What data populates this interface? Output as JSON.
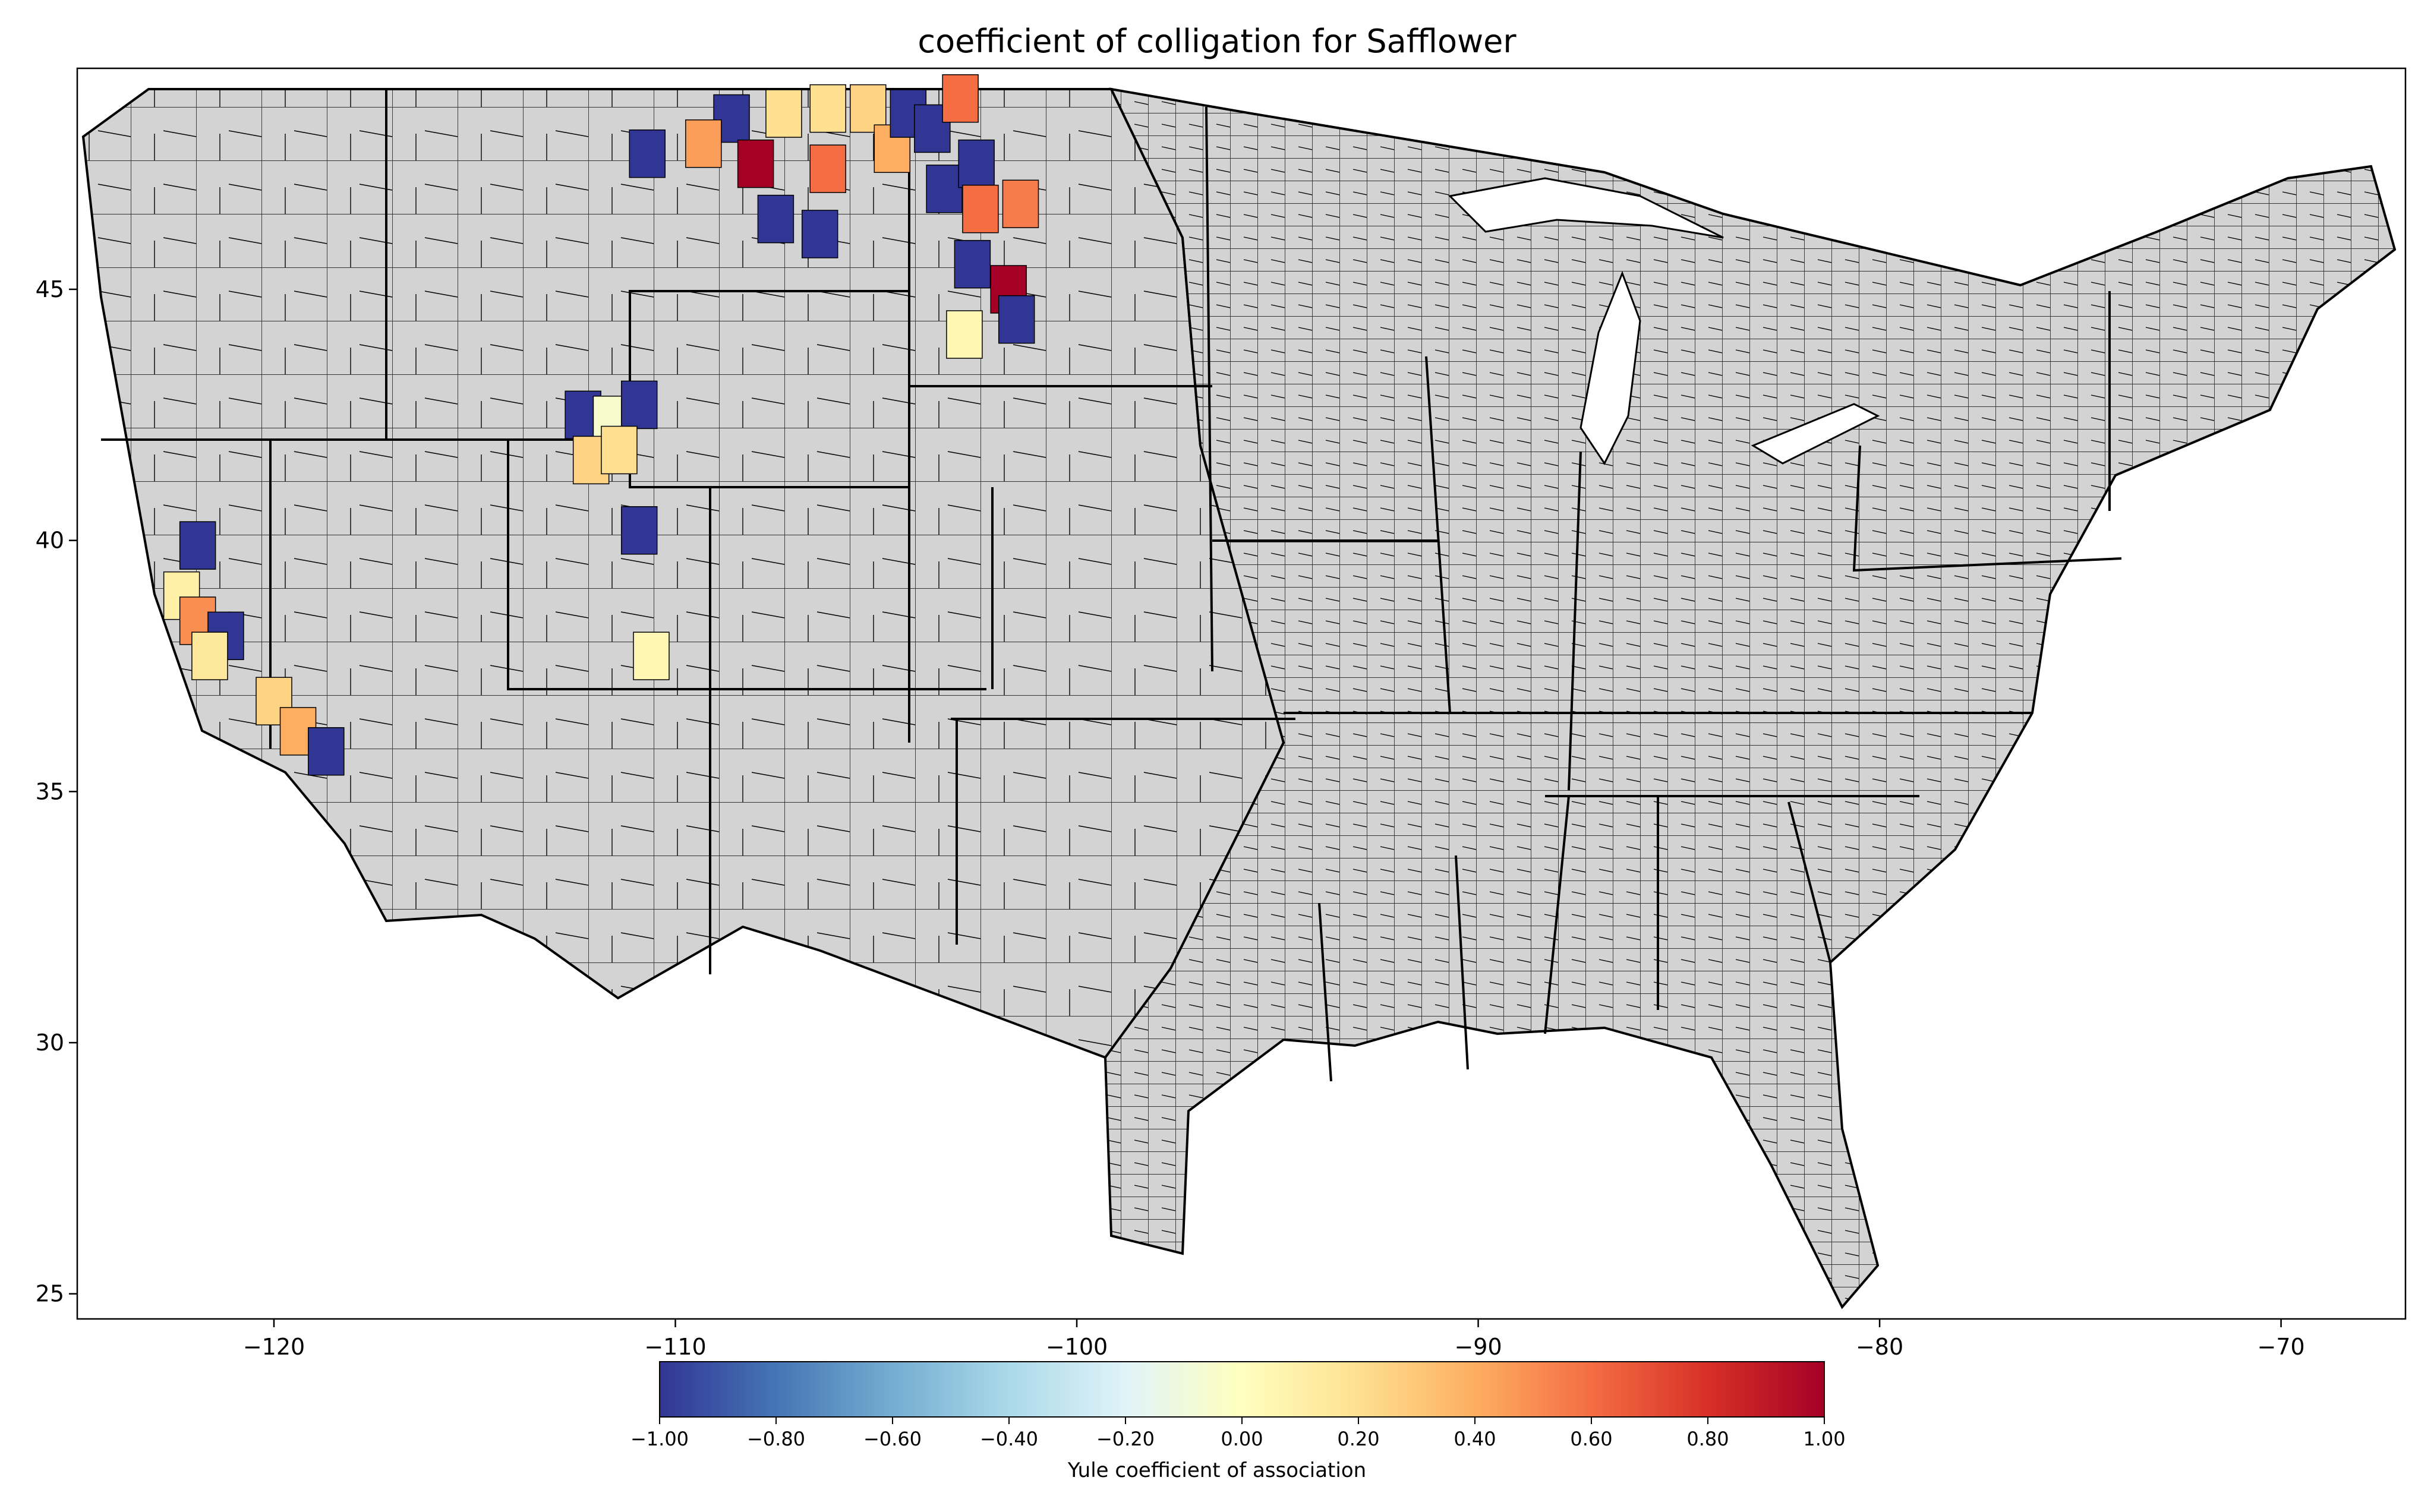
{
  "title": "coefficient of colligation for Safflower",
  "map": {
    "region": "Contiguous United States, county boundaries",
    "base_fill": "#d3d3d3",
    "border_color": "#000000",
    "x_ticks": [
      {
        "value": -120,
        "label": "−120"
      },
      {
        "value": -110,
        "label": "−110"
      },
      {
        "value": -100,
        "label": "−100"
      },
      {
        "value": -90,
        "label": "−90"
      },
      {
        "value": -80,
        "label": "−80"
      },
      {
        "value": -70,
        "label": "−70"
      }
    ],
    "y_ticks": [
      {
        "value": 45,
        "label": "45"
      },
      {
        "value": 40,
        "label": "40"
      },
      {
        "value": 35,
        "label": "35"
      },
      {
        "value": 30,
        "label": "30"
      },
      {
        "value": 25,
        "label": "25"
      }
    ],
    "xlim": [
      -124.9,
      -66.9
    ],
    "ylim": [
      24.5,
      49.4
    ],
    "highlighted_regions": [
      {
        "lon": -108.6,
        "lat": 48.4,
        "value": -1.0
      },
      {
        "lon": -107.3,
        "lat": 48.5,
        "value": 0.2
      },
      {
        "lon": -106.2,
        "lat": 48.6,
        "value": 0.2
      },
      {
        "lon": -105.2,
        "lat": 48.6,
        "value": 0.25
      },
      {
        "lon": -109.3,
        "lat": 47.9,
        "value": 0.45
      },
      {
        "lon": -108.0,
        "lat": 47.5,
        "value": 1.0
      },
      {
        "lon": -106.2,
        "lat": 47.4,
        "value": 0.6
      },
      {
        "lon": -104.6,
        "lat": 47.8,
        "value": 0.4
      },
      {
        "lon": -104.2,
        "lat": 48.5,
        "value": -1.0
      },
      {
        "lon": -110.7,
        "lat": 47.7,
        "value": -1.0
      },
      {
        "lon": -107.5,
        "lat": 46.4,
        "value": -1.0
      },
      {
        "lon": -106.4,
        "lat": 46.1,
        "value": -1.0
      },
      {
        "lon": -103.6,
        "lat": 48.2,
        "value": -1.0
      },
      {
        "lon": -102.9,
        "lat": 48.8,
        "value": 0.6
      },
      {
        "lon": -103.3,
        "lat": 47.0,
        "value": -1.0
      },
      {
        "lon": -102.5,
        "lat": 47.5,
        "value": -1.0
      },
      {
        "lon": -101.4,
        "lat": 46.7,
        "value": 0.55
      },
      {
        "lon": -102.4,
        "lat": 46.6,
        "value": 0.6
      },
      {
        "lon": -101.7,
        "lat": 45.0,
        "value": 1.0
      },
      {
        "lon": -102.6,
        "lat": 45.5,
        "value": -1.0
      },
      {
        "lon": -101.5,
        "lat": 44.4,
        "value": -1.0
      },
      {
        "lon": -102.8,
        "lat": 44.1,
        "value": 0.05
      },
      {
        "lon": -112.3,
        "lat": 42.5,
        "value": -1.0
      },
      {
        "lon": -111.6,
        "lat": 42.4,
        "value": -0.05
      },
      {
        "lon": -110.9,
        "lat": 42.7,
        "value": -1.0
      },
      {
        "lon": -112.1,
        "lat": 41.6,
        "value": 0.25
      },
      {
        "lon": -111.4,
        "lat": 41.8,
        "value": 0.2
      },
      {
        "lon": -110.9,
        "lat": 40.2,
        "value": -1.0
      },
      {
        "lon": -110.6,
        "lat": 37.7,
        "value": 0.05
      },
      {
        "lon": -121.9,
        "lat": 39.9,
        "value": -1.0
      },
      {
        "lon": -122.3,
        "lat": 38.9,
        "value": 0.1
      },
      {
        "lon": -121.9,
        "lat": 38.4,
        "value": 0.5
      },
      {
        "lon": -121.2,
        "lat": 38.1,
        "value": -1.0
      },
      {
        "lon": -121.6,
        "lat": 37.7,
        "value": 0.15
      },
      {
        "lon": -120.0,
        "lat": 36.8,
        "value": 0.25
      },
      {
        "lon": -119.4,
        "lat": 36.2,
        "value": 0.4
      },
      {
        "lon": -118.7,
        "lat": 35.8,
        "value": -1.0
      }
    ]
  },
  "colorbar": {
    "label": "Yule coefficient of association",
    "min": -1.0,
    "max": 1.0,
    "tick_labels": [
      "−1.00",
      "−0.80",
      "−0.60",
      "−0.40",
      "−0.20",
      "0.00",
      "0.20",
      "0.40",
      "0.60",
      "0.80",
      "1.00"
    ],
    "tick_values": [
      -1.0,
      -0.8,
      -0.6,
      -0.4,
      -0.2,
      0.0,
      0.2,
      0.4,
      0.6,
      0.8,
      1.0
    ],
    "colors": [
      "#313695",
      "#4575b4",
      "#74add1",
      "#abd9e9",
      "#e0f3f8",
      "#ffffbf",
      "#fee090",
      "#fdae61",
      "#f46d43",
      "#d73027",
      "#a50026"
    ]
  }
}
